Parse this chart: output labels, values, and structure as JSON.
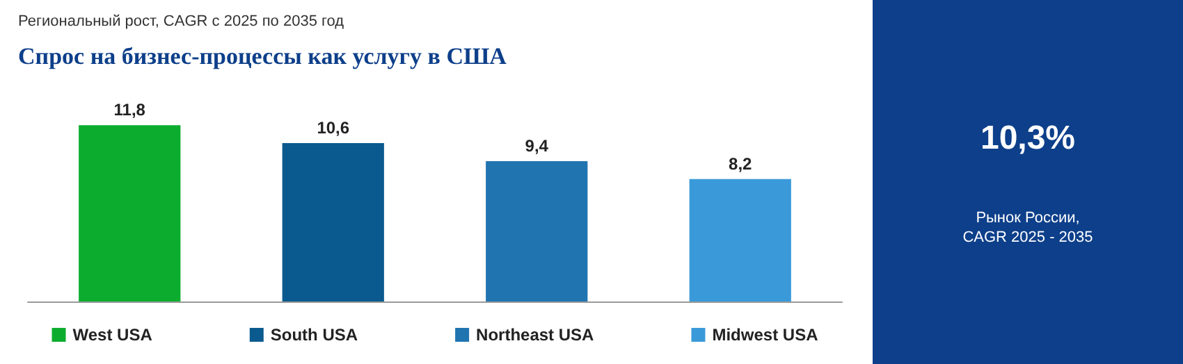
{
  "chart_data": {
    "type": "bar",
    "title": "Спрос на бизнес-процессы как услугу в США",
    "subtitle": "Региональный рост, CAGR с 2025 по 2035 год",
    "categories": [
      null,
      null,
      null,
      null
    ],
    "series": [
      {
        "name": "West USA",
        "color": "#0cad2e",
        "values": [
          11.8,
          null,
          null,
          null
        ],
        "value_labels": [
          "11,8",
          null,
          null,
          null
        ]
      },
      {
        "name": "South USA",
        "color": "#0b5a8f",
        "values": [
          null,
          10.6,
          null,
          null
        ],
        "value_labels": [
          null,
          "10,6",
          null,
          null
        ]
      },
      {
        "name": "Northeast USA",
        "color": "#2074b0",
        "values": [
          null,
          null,
          9.4,
          null
        ],
        "value_labels": [
          null,
          null,
          "9,4",
          null
        ]
      },
      {
        "name": "Midwest USA",
        "color": "#3a9ad9",
        "values": [
          null,
          null,
          null,
          8.2
        ],
        "value_labels": [
          null,
          null,
          null,
          "8,2"
        ]
      }
    ],
    "legend": "bottom",
    "stacked": true,
    "tick_labels": false,
    "annotations": [
      "10,3%",
      "Рынок России,\nCAGR 2025 - 2035"
    ]
  }
}
